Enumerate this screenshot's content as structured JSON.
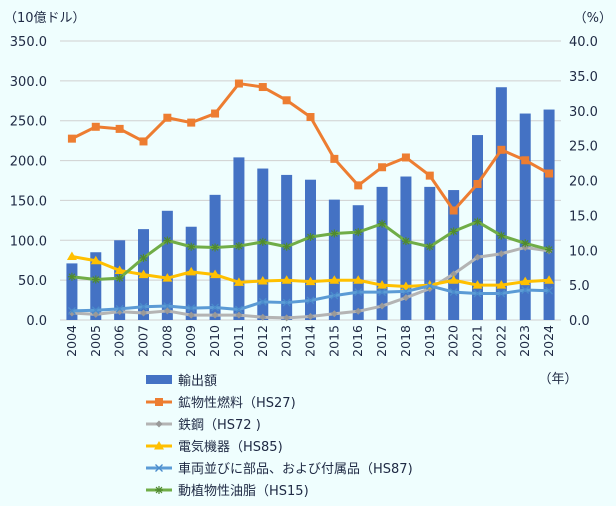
{
  "chart_data": {
    "type": "bar+line",
    "left_unit_label": "（10億ドル）",
    "right_unit_label": "（%）",
    "x_unit_label": "（年）",
    "categories": [
      "2004",
      "2005",
      "2006",
      "2007",
      "2008",
      "2009",
      "2010",
      "2011",
      "2012",
      "2013",
      "2014",
      "2015",
      "2016",
      "2017",
      "2018",
      "2019",
      "2020",
      "2021",
      "2022",
      "2023",
      "2024"
    ],
    "left_axis": {
      "min": 0,
      "max": 350,
      "step": 50,
      "ticks": [
        "0.0",
        "50.0",
        "100.0",
        "150.0",
        "200.0",
        "250.0",
        "300.0",
        "350.0"
      ]
    },
    "right_axis": {
      "min": 0,
      "max": 40,
      "step": 5,
      "ticks": [
        "0.0",
        "5.0",
        "10.0",
        "15.0",
        "20.0",
        "25.0",
        "30.0",
        "35.0",
        "40.0"
      ]
    },
    "grid": true,
    "legend_position": "bottom",
    "bars": {
      "name": "輸出額",
      "axis": "left",
      "color": "#4472c4",
      "values": [
        71,
        85,
        100,
        114,
        137,
        117,
        157,
        204,
        190,
        182,
        176,
        151,
        144,
        167,
        180,
        167,
        163,
        232,
        292,
        259,
        264
      ]
    },
    "series": [
      {
        "name": "鉱物性燃料（HS27)",
        "axis": "right",
        "color": "#ed7d31",
        "marker": "square",
        "values": [
          26.0,
          27.7,
          27.4,
          25.6,
          29.0,
          28.3,
          29.6,
          33.9,
          33.4,
          31.5,
          29.1,
          23.1,
          19.3,
          21.9,
          23.3,
          20.7,
          15.7,
          19.5,
          24.4,
          22.9,
          21.0
        ]
      },
      {
        "name": "鉄鋼（HS72 )",
        "axis": "right",
        "color": "#b4b4b4",
        "marker": "diamond",
        "values": [
          1.0,
          0.8,
          1.2,
          1.0,
          1.3,
          0.7,
          0.7,
          0.7,
          0.4,
          0.3,
          0.5,
          0.9,
          1.25,
          2.0,
          3.2,
          4.5,
          6.6,
          9.0,
          9.5,
          10.4,
          9.9
        ]
      },
      {
        "name": "電気機器（HS85)",
        "axis": "right",
        "color": "#ffc000",
        "marker": "triangle",
        "values": [
          9.1,
          8.5,
          7.1,
          6.5,
          6.0,
          6.9,
          6.5,
          5.4,
          5.6,
          5.7,
          5.5,
          5.7,
          5.7,
          5.0,
          4.8,
          5.0,
          5.7,
          5.0,
          5.0,
          5.5,
          5.7
        ]
      },
      {
        "name": "車両並びに部品、および付属品（HS87)",
        "axis": "right",
        "color": "#5b9bd5",
        "marker": "x",
        "values": [
          1.3,
          1.4,
          1.6,
          1.9,
          2.0,
          1.7,
          1.8,
          1.5,
          2.6,
          2.5,
          2.8,
          3.5,
          4.0,
          4.0,
          4.1,
          4.9,
          4.0,
          3.8,
          3.8,
          4.3,
          4.2
        ]
      },
      {
        "name": "動植物性油脂（HS15)",
        "axis": "right",
        "color": "#70ad47",
        "marker": "star",
        "values": [
          6.2,
          5.8,
          6.0,
          8.9,
          11.4,
          10.5,
          10.4,
          10.6,
          11.2,
          10.5,
          11.9,
          12.4,
          12.6,
          13.8,
          11.3,
          10.5,
          12.7,
          14.1,
          12.1,
          11.0,
          10.1
        ]
      }
    ]
  }
}
